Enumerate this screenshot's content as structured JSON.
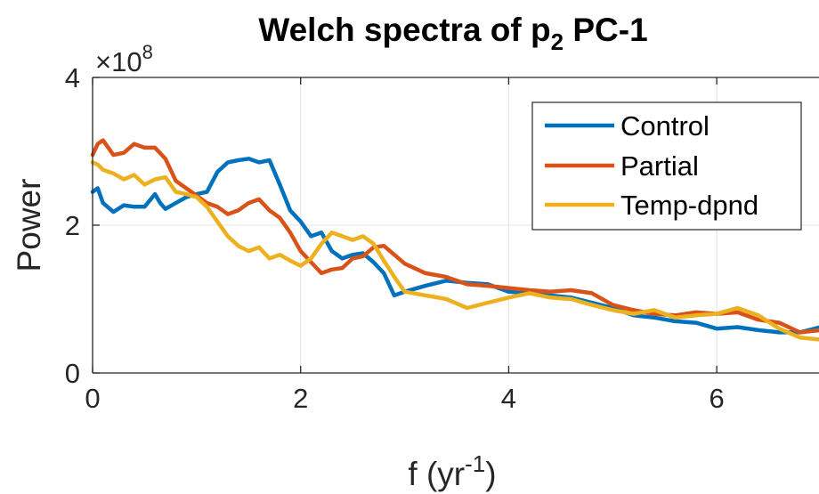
{
  "chart_data": {
    "type": "line",
    "title": {
      "base": "Welch spectra of p",
      "subscript": "2",
      "rest": " PC-1"
    },
    "xlabel": {
      "base": "f (yr",
      "superscript": "-1",
      "rest": ")"
    },
    "ylabel": "Power",
    "y_exponent": {
      "prefix": "×10",
      "power": "8"
    },
    "xlim": [
      0,
      7
    ],
    "ylim": [
      0,
      4
    ],
    "x_ticks": [
      0,
      2,
      4,
      6
    ],
    "x_tick_labels": [
      "0",
      "2",
      "4",
      "6"
    ],
    "y_ticks": [
      0,
      2,
      4
    ],
    "y_tick_labels": [
      "0",
      "2",
      "4"
    ],
    "grid": true,
    "legend_position": "top-right",
    "series": [
      {
        "name": "Control",
        "color": "#0072BD",
        "x": [
          0,
          0.05,
          0.1,
          0.2,
          0.3,
          0.4,
          0.5,
          0.6,
          0.65,
          0.7,
          0.8,
          0.9,
          1.0,
          1.1,
          1.2,
          1.3,
          1.4,
          1.5,
          1.6,
          1.7,
          1.8,
          1.9,
          2.0,
          2.1,
          2.2,
          2.3,
          2.4,
          2.5,
          2.6,
          2.7,
          2.8,
          2.9,
          3.0,
          3.2,
          3.4,
          3.6,
          3.8,
          4.0,
          4.2,
          4.4,
          4.6,
          4.8,
          5.0,
          5.2,
          5.4,
          5.6,
          5.8,
          6.0,
          6.2,
          6.4,
          6.6,
          6.8,
          7.0
        ],
        "y": [
          2.45,
          2.5,
          2.3,
          2.18,
          2.27,
          2.25,
          2.25,
          2.42,
          2.3,
          2.22,
          2.3,
          2.38,
          2.42,
          2.45,
          2.72,
          2.85,
          2.88,
          2.9,
          2.85,
          2.88,
          2.55,
          2.2,
          2.05,
          1.85,
          1.9,
          1.65,
          1.55,
          1.6,
          1.62,
          1.5,
          1.35,
          1.05,
          1.1,
          1.18,
          1.25,
          1.22,
          1.2,
          1.1,
          1.08,
          1.05,
          1.02,
          0.95,
          0.88,
          0.78,
          0.75,
          0.7,
          0.68,
          0.6,
          0.62,
          0.58,
          0.55,
          0.55,
          0.62
        ]
      },
      {
        "name": "Partial",
        "color": "#D95319",
        "x": [
          0,
          0.05,
          0.1,
          0.2,
          0.3,
          0.4,
          0.5,
          0.6,
          0.7,
          0.8,
          0.9,
          1.0,
          1.1,
          1.2,
          1.3,
          1.4,
          1.5,
          1.6,
          1.7,
          1.8,
          1.9,
          2.0,
          2.1,
          2.2,
          2.3,
          2.4,
          2.5,
          2.6,
          2.7,
          2.8,
          2.9,
          3.0,
          3.2,
          3.4,
          3.6,
          3.8,
          4.0,
          4.2,
          4.4,
          4.6,
          4.8,
          5.0,
          5.2,
          5.4,
          5.6,
          5.8,
          6.0,
          6.2,
          6.4,
          6.6,
          6.8,
          7.0
        ],
        "y": [
          2.95,
          3.1,
          3.15,
          2.95,
          2.98,
          3.1,
          3.05,
          3.05,
          2.9,
          2.6,
          2.5,
          2.4,
          2.3,
          2.25,
          2.15,
          2.2,
          2.3,
          2.35,
          2.2,
          2.1,
          1.9,
          1.65,
          1.5,
          1.35,
          1.4,
          1.42,
          1.55,
          1.58,
          1.7,
          1.72,
          1.6,
          1.48,
          1.35,
          1.3,
          1.2,
          1.18,
          1.15,
          1.12,
          1.1,
          1.12,
          1.08,
          0.92,
          0.85,
          0.8,
          0.78,
          0.82,
          0.8,
          0.82,
          0.72,
          0.68,
          0.55,
          0.58
        ]
      },
      {
        "name": "Temp-dpnd",
        "color": "#EDB120",
        "x": [
          0,
          0.05,
          0.1,
          0.2,
          0.3,
          0.4,
          0.5,
          0.6,
          0.7,
          0.8,
          0.9,
          1.0,
          1.1,
          1.2,
          1.3,
          1.4,
          1.5,
          1.6,
          1.7,
          1.8,
          1.9,
          2.0,
          2.1,
          2.2,
          2.3,
          2.4,
          2.5,
          2.6,
          2.7,
          2.8,
          2.9,
          3.0,
          3.2,
          3.4,
          3.6,
          3.8,
          4.0,
          4.2,
          4.4,
          4.6,
          4.8,
          5.0,
          5.2,
          5.4,
          5.6,
          5.8,
          6.0,
          6.2,
          6.4,
          6.6,
          6.8,
          7.0
        ],
        "y": [
          2.85,
          2.82,
          2.75,
          2.7,
          2.62,
          2.68,
          2.55,
          2.62,
          2.65,
          2.45,
          2.42,
          2.38,
          2.25,
          2.05,
          1.85,
          1.72,
          1.65,
          1.7,
          1.55,
          1.6,
          1.52,
          1.45,
          1.55,
          1.75,
          1.9,
          1.85,
          1.8,
          1.85,
          1.75,
          1.52,
          1.3,
          1.1,
          1.05,
          1.0,
          0.88,
          0.95,
          1.02,
          1.08,
          1.02,
          1.0,
          0.92,
          0.85,
          0.8,
          0.85,
          0.75,
          0.78,
          0.8,
          0.88,
          0.78,
          0.6,
          0.48,
          0.45
        ]
      }
    ]
  }
}
